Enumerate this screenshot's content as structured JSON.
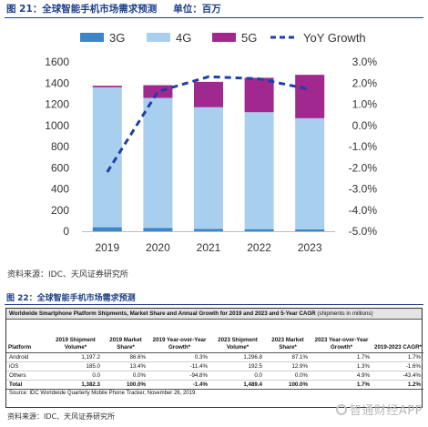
{
  "figure1": {
    "title": "图 21：全球智能手机市场需求预测",
    "unit": "单位：百万",
    "source": "资料来源：IDC、天风证券研究所"
  },
  "chart_data": {
    "type": "bar",
    "stacked": true,
    "categories": [
      "2019",
      "2020",
      "2021",
      "2022",
      "2023"
    ],
    "series": [
      {
        "name": "3G",
        "values": [
          38,
          30,
          22,
          20,
          18
        ],
        "color": "#3a86c8"
      },
      {
        "name": "4G",
        "values": [
          1322,
          1230,
          1150,
          1105,
          1050
        ],
        "color": "#a9cfee"
      },
      {
        "name": "5G",
        "values": [
          15,
          120,
          240,
          325,
          410
        ],
        "color": "#a0288f"
      },
      {
        "name": "YoY Growth",
        "type": "line",
        "axis": "right",
        "values": [
          -2.2,
          1.6,
          2.3,
          2.2,
          1.7
        ],
        "color": "#1f3fa8",
        "style": "dashed"
      }
    ],
    "ylim_left": [
      0,
      1600
    ],
    "yticks_left": [
      "0",
      "200",
      "400",
      "600",
      "800",
      "1000",
      "1200",
      "1400",
      "1600"
    ],
    "ylim_right": [
      -5.0,
      3.0
    ],
    "yticks_right": [
      "-5.0%",
      "-4.0%",
      "-3.0%",
      "-2.0%",
      "-1.0%",
      "0.0%",
      "1.0%",
      "2.0%",
      "3.0%"
    ],
    "legend_position": "top",
    "grid": false
  },
  "figure2": {
    "title": "图 22：全球智能手机市场需求预测",
    "table_title": "Worldwide Smartphone Platform Shipments, Market Share and Annual Growth for 2019 and 2023 and 5-Year CAGR",
    "table_title_unit": "(shipments in millions)",
    "headers": [
      "Platform",
      "2019 Shipment Volume*",
      "2019 Market Share*",
      "2019 Year-over-Year Growth*",
      "2023 Shipment Volume*",
      "2023 Market Share*",
      "2023 Year-over-Year Growth*",
      "2019-2023 CAGR*"
    ],
    "rows": [
      [
        "Android",
        "1,197.2",
        "86.6%",
        "0.3%",
        "1,296.8",
        "87.1%",
        "1.7%",
        "1.7%"
      ],
      [
        "iOS",
        "185.0",
        "13.4%",
        "-11.4%",
        "192.5",
        "12.9%",
        "1.3%",
        "-1.6%"
      ],
      [
        "Others",
        "0.0",
        "0.0%",
        "-94.8%",
        "0.0",
        "0.0%",
        "4.9%",
        "-43.4%"
      ],
      [
        "Total",
        "1,382.3",
        "100.0%",
        "-1.4%",
        "1,489.4",
        "100.0%",
        "1.7%",
        "1.2%"
      ]
    ],
    "note": "Source: IDC Worldwide Quarterly Mobile Phone Tracker, November 26, 2019.",
    "source": "资料来源：IDC、天风证券研究所"
  },
  "watermark": "智通财经APP"
}
